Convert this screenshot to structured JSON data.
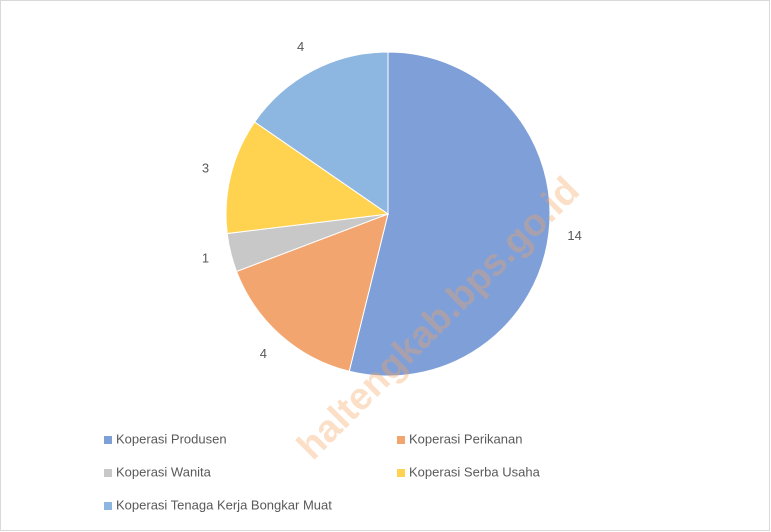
{
  "chart_data": {
    "type": "pie",
    "categories": [
      "Koperasi Produsen",
      "Koperasi Perikanan",
      "Koperasi Wanita",
      "Koperasi Serba Usaha",
      "Koperasi Tenaga Kerja Bongkar Muat"
    ],
    "values": [
      14,
      4,
      1,
      3,
      4
    ],
    "colors": [
      "#7f9fd8",
      "#f3a56f",
      "#c8c8c8",
      "#ffd34f",
      "#8db6e0"
    ],
    "watermark": "haltengkab.bps.go.id"
  }
}
